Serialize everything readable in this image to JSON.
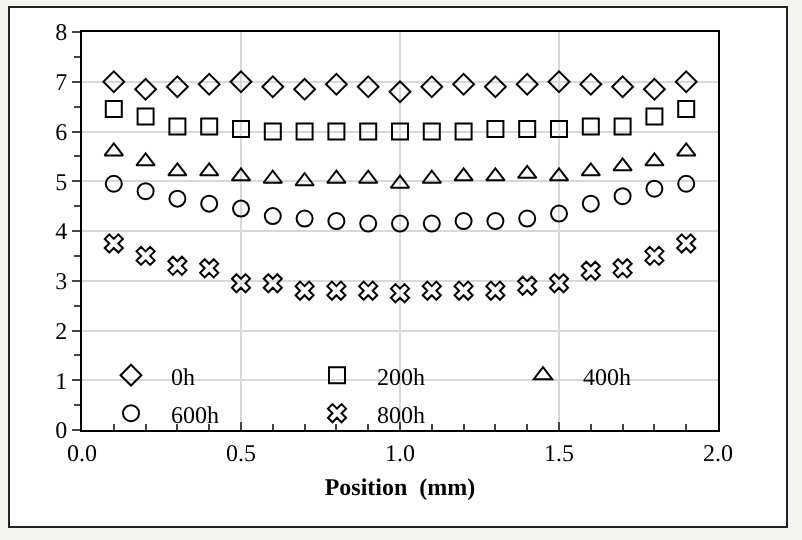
{
  "chart_data": {
    "type": "scatter",
    "xlabel": "Position  (mm)",
    "xlim": [
      0,
      2
    ],
    "xticks": [
      {
        "value": 0,
        "label": "0.0"
      },
      {
        "value": 0.5,
        "label": "0.5"
      },
      {
        "value": 1,
        "label": "1.0"
      },
      {
        "value": 1.5,
        "label": "1.5"
      },
      {
        "value": 2,
        "label": "2.0"
      }
    ],
    "ylim": [
      0,
      8
    ],
    "yticks": [
      0,
      1,
      2,
      3,
      4,
      5,
      6,
      7,
      8
    ],
    "grid": true,
    "legend": "bottom",
    "x": [
      0.1,
      0.2,
      0.3,
      0.4,
      0.5,
      0.6,
      0.7,
      0.8,
      0.9,
      1.0,
      1.1,
      1.2,
      1.3,
      1.4,
      1.5,
      1.6,
      1.7,
      1.8,
      1.9
    ],
    "series": [
      {
        "name": "0h",
        "color": "#000000",
        "marker": "diamond",
        "values": [
          7.0,
          6.85,
          6.9,
          6.95,
          7.0,
          6.9,
          6.85,
          6.95,
          6.9,
          6.8,
          6.9,
          6.95,
          6.9,
          6.95,
          7.0,
          6.95,
          6.9,
          6.85,
          7.0
        ]
      },
      {
        "name": "200h",
        "color": "#000000",
        "marker": "square",
        "values": [
          6.45,
          6.3,
          6.1,
          6.1,
          6.05,
          6.0,
          6.0,
          6.0,
          6.0,
          6.0,
          6.0,
          6.0,
          6.05,
          6.05,
          6.05,
          6.1,
          6.1,
          6.3,
          6.45
        ]
      },
      {
        "name": "400h",
        "color": "#000000",
        "marker": "triangle",
        "values": [
          5.6,
          5.4,
          5.2,
          5.2,
          5.1,
          5.05,
          5.0,
          5.05,
          5.05,
          4.95,
          5.05,
          5.1,
          5.1,
          5.15,
          5.1,
          5.2,
          5.3,
          5.4,
          5.6
        ]
      },
      {
        "name": "600h",
        "color": "#000000",
        "marker": "circle",
        "values": [
          4.95,
          4.8,
          4.65,
          4.55,
          4.45,
          4.3,
          4.25,
          4.2,
          4.15,
          4.15,
          4.15,
          4.2,
          4.2,
          4.25,
          4.35,
          4.55,
          4.7,
          4.85,
          4.95
        ]
      },
      {
        "name": "800h",
        "color": "#000000",
        "marker": "cross",
        "values": [
          3.75,
          3.5,
          3.3,
          3.25,
          2.95,
          2.95,
          2.8,
          2.8,
          2.8,
          2.75,
          2.8,
          2.8,
          2.8,
          2.9,
          2.95,
          3.2,
          3.25,
          3.5,
          3.75
        ]
      }
    ]
  }
}
